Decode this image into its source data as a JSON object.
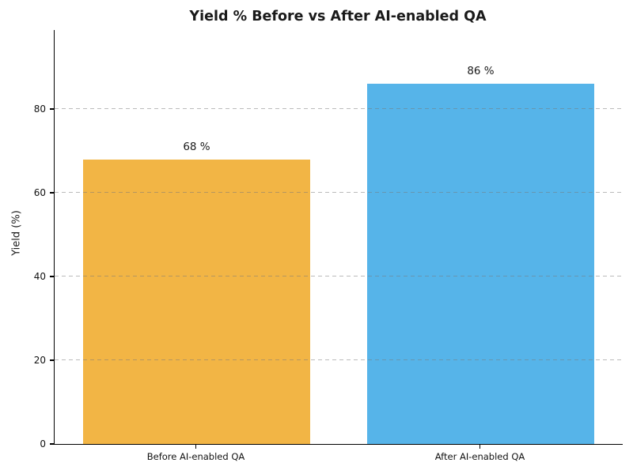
{
  "chart_data": {
    "type": "bar",
    "title": "Yield % Before vs After AI-enabled QA",
    "xlabel": "",
    "ylabel": "Yield (%)",
    "categories": [
      "Before AI-enabled QA",
      "After AI-enabled QA"
    ],
    "values": [
      68,
      86
    ],
    "bar_labels": [
      "68 %",
      "86 %"
    ],
    "bar_colors": [
      "#F2B545",
      "#56B4E9"
    ],
    "yticks": [
      0,
      20,
      40,
      60,
      80
    ],
    "ylim": [
      0,
      98.9
    ],
    "grid": "horizontal-dashed",
    "grid_color": "#c2c2c2",
    "legend_position": "none",
    "spines": [
      "left",
      "bottom"
    ],
    "text_color": "#1a1a1a"
  }
}
